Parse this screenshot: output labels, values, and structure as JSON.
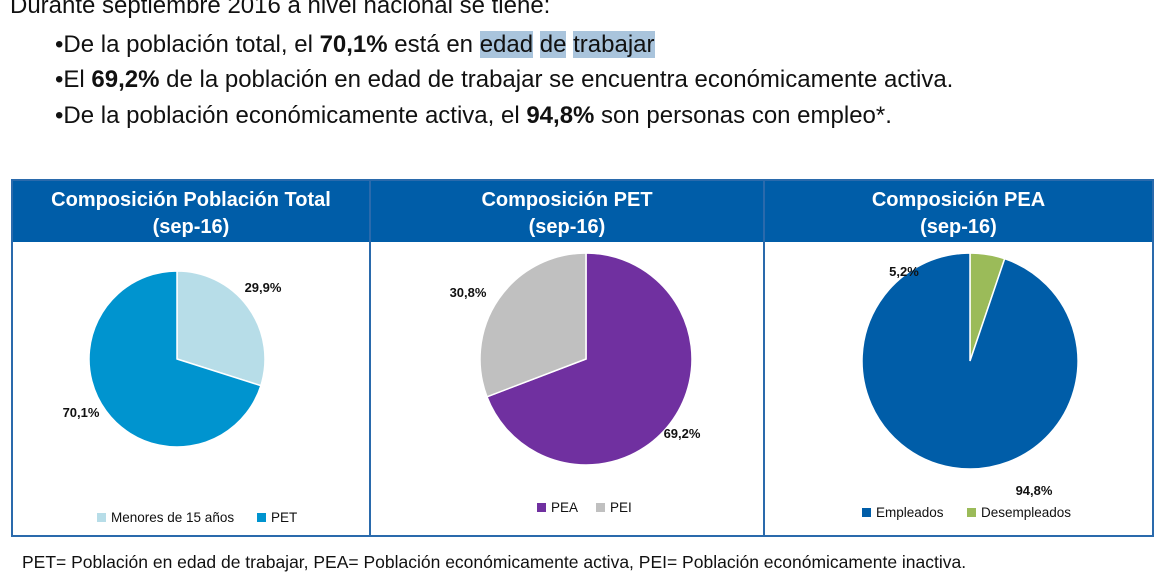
{
  "intro": {
    "lead": "Durante septiembre 2016 a nivel nacional se tiene:",
    "bullet1": {
      "pre": "•De la población total, el ",
      "value": "70,1%",
      "mid": " está en ",
      "hl1": "edad",
      "sp1": " ",
      "hl2": "de",
      "sp2": " ",
      "hl3": "trabajar"
    },
    "bullet2": {
      "pre": "•El ",
      "value": "69,2%",
      "post": " de la población en edad de trabajar se encuentra económicamente activa."
    },
    "bullet3": {
      "pre": "•De la población económicamente activa, el ",
      "value": "94,8%",
      "post": " son personas con empleo*."
    }
  },
  "colors": {
    "header": "#005da8",
    "border": "#2a6aac",
    "highlight": "#a9c4dc"
  },
  "chart_data": [
    {
      "type": "pie",
      "title": "Composición Población Total",
      "subtitle": "(sep-16)",
      "labels": [
        "Menores de 15 años",
        "PET"
      ],
      "values": [
        29.9,
        70.1
      ],
      "data_labels": [
        "29,9%",
        "70,1%"
      ],
      "colors": [
        "#b7dde8",
        "#0094cf"
      ],
      "legend": "bottom"
    },
    {
      "type": "pie",
      "title": "Composición PET",
      "subtitle": "(sep-16)",
      "labels": [
        "PEA",
        "PEI"
      ],
      "values": [
        69.2,
        30.8
      ],
      "data_labels": [
        "69,2%",
        "30,8%"
      ],
      "colors": [
        "#7030a0",
        "#c0c0c0"
      ],
      "legend": "bottom"
    },
    {
      "type": "pie",
      "title": "Composición PEA",
      "subtitle": "(sep-16)",
      "labels": [
        "Empleados",
        "Desempleados"
      ],
      "values": [
        94.8,
        5.2
      ],
      "data_labels": [
        "94,8%",
        "5,2%"
      ],
      "colors": [
        "#005da8",
        "#9bbb59"
      ],
      "legend": "bottom"
    }
  ],
  "footer": "PET= Población en edad de trabajar, PEA= Población económicamente activa, PEI= Población económicamente inactiva."
}
